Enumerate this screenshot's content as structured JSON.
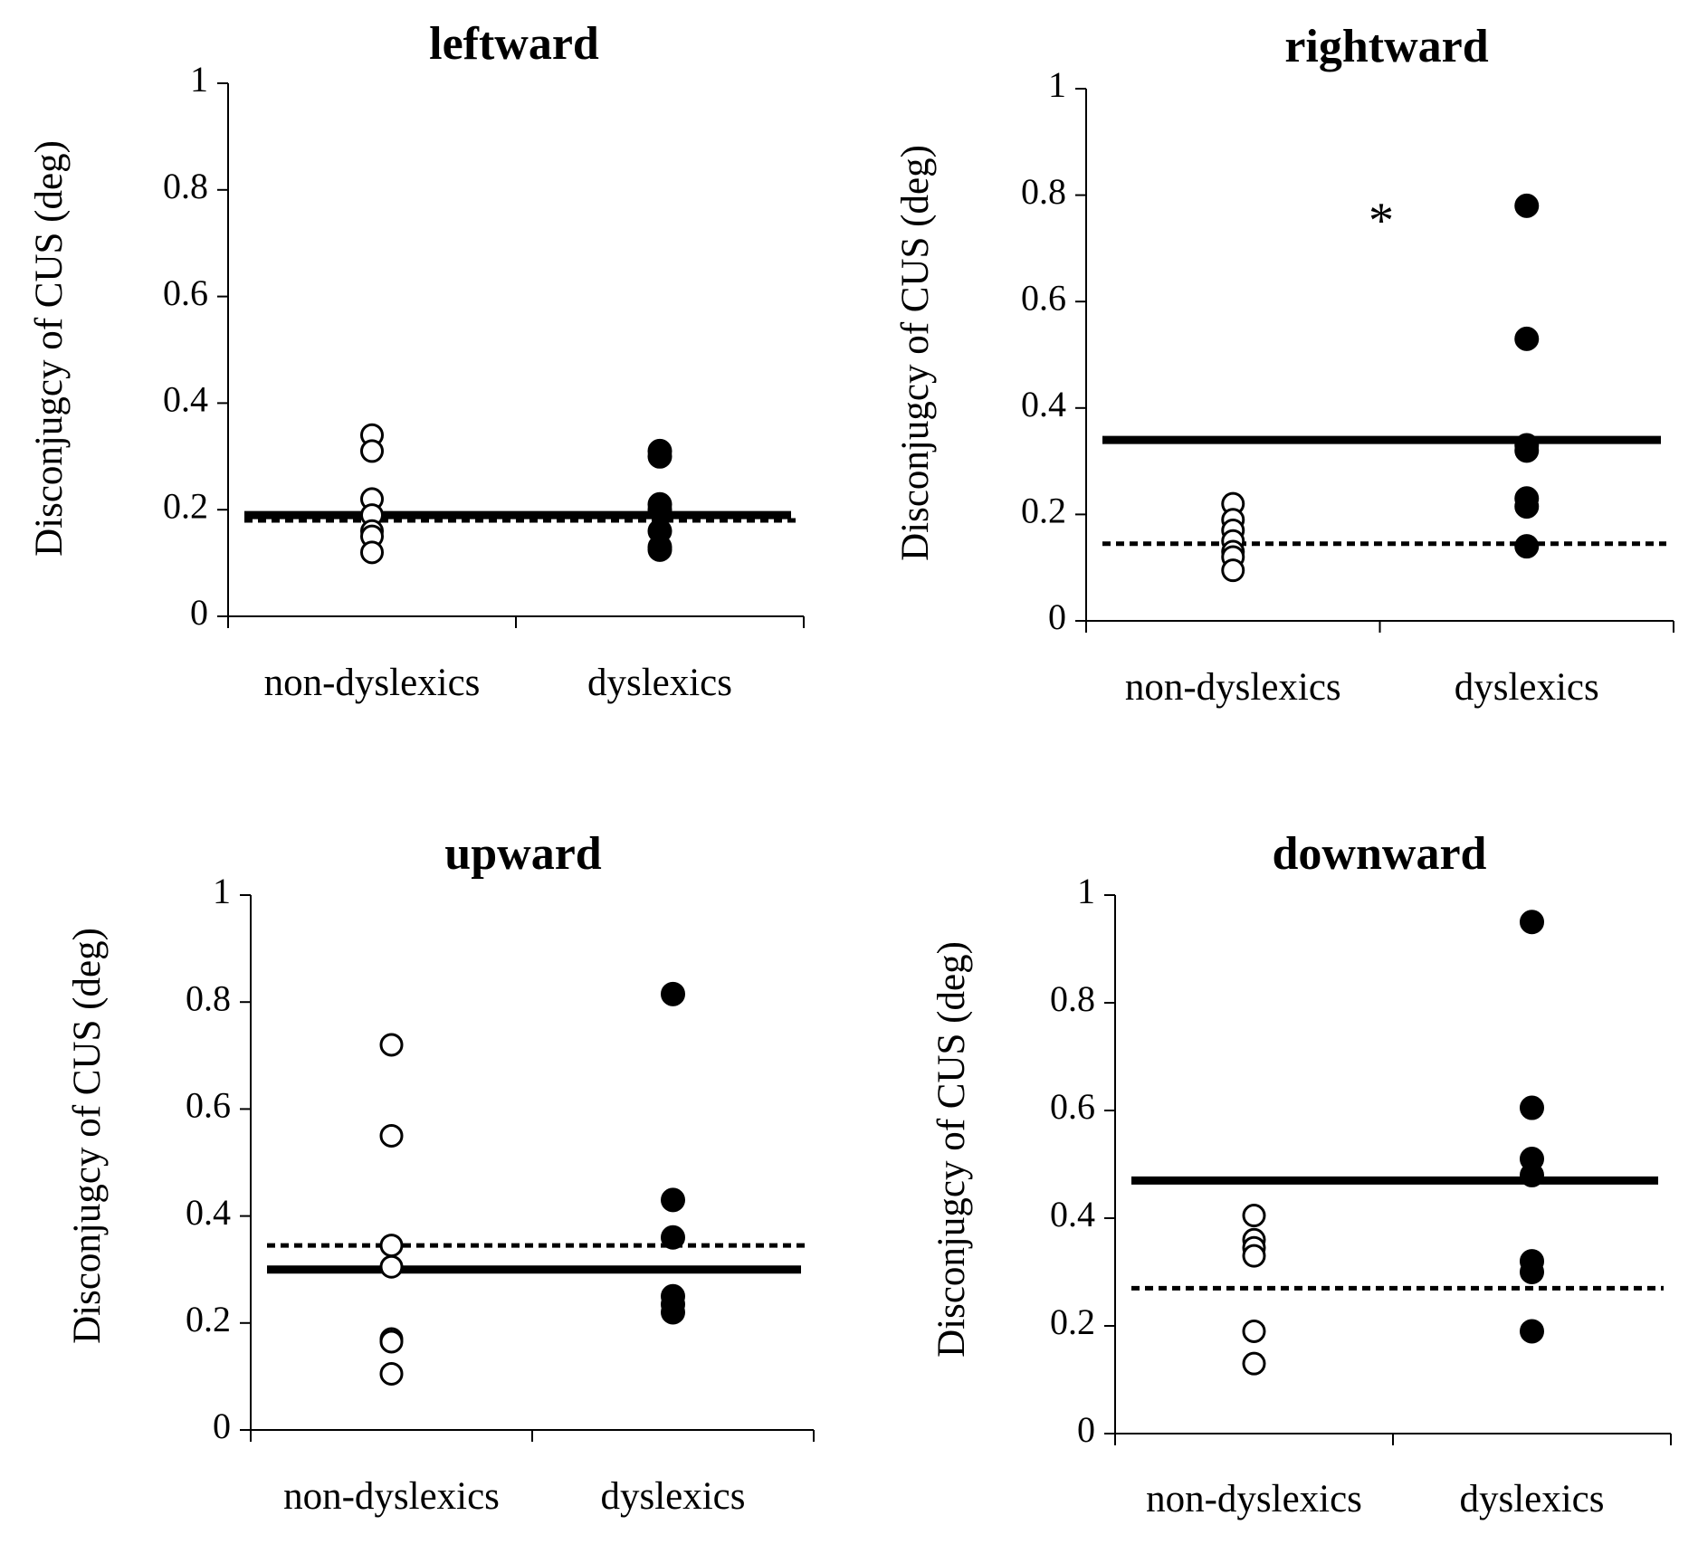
{
  "chart_data": [
    {
      "type": "scatter",
      "title": "leftward",
      "ylabel": "Disconjugcy of  CUS (deg)",
      "xlabel": "",
      "categories": [
        "non-dyslexics",
        "dyslexics"
      ],
      "ylim": [
        0,
        1
      ],
      "yticks": [
        "0",
        "0.2",
        "0.4",
        "0.6",
        "0.8",
        "1"
      ],
      "series": [
        {
          "name": "non-dyslexics",
          "marker": "open-circle",
          "values": [
            0.34,
            0.31,
            0.22,
            0.19,
            0.16,
            0.15,
            0.12
          ]
        },
        {
          "name": "dyslexics",
          "marker": "filled-circle",
          "values": [
            0.31,
            0.3,
            0.21,
            0.2,
            0.16,
            0.13,
            0.125
          ]
        }
      ],
      "solid_line": 0.19,
      "dashed_line": 0.18,
      "annotation": ""
    },
    {
      "type": "scatter",
      "title": "rightward",
      "ylabel": "Disconjugcy of  CUS (deg)",
      "xlabel": "",
      "categories": [
        "non-dyslexics",
        "dyslexics"
      ],
      "ylim": [
        0,
        1
      ],
      "yticks": [
        "0",
        "0.2",
        "0.4",
        "0.6",
        "0.8",
        "1"
      ],
      "series": [
        {
          "name": "non-dyslexics",
          "marker": "open-circle",
          "values": [
            0.22,
            0.19,
            0.17,
            0.15,
            0.13,
            0.12,
            0.095
          ]
        },
        {
          "name": "dyslexics",
          "marker": "filled-circle",
          "values": [
            0.78,
            0.53,
            0.33,
            0.32,
            0.23,
            0.215,
            0.14
          ]
        }
      ],
      "solid_line": 0.34,
      "dashed_line": 0.145,
      "annotation": "*"
    },
    {
      "type": "scatter",
      "title": "upward",
      "ylabel": "Disconjugcy of  CUS (deg)",
      "xlabel": "",
      "categories": [
        "non-dyslexics",
        "dyslexics"
      ],
      "ylim": [
        0,
        1
      ],
      "yticks": [
        "0",
        "0.2",
        "0.4",
        "0.6",
        "0.8",
        "1"
      ],
      "series": [
        {
          "name": "non-dyslexics",
          "marker": "open-circle",
          "values": [
            0.72,
            0.55,
            0.345,
            0.305,
            0.17,
            0.165,
            0.105
          ]
        },
        {
          "name": "dyslexics",
          "marker": "filled-circle",
          "values": [
            0.815,
            0.43,
            0.36,
            0.25,
            0.235,
            0.22
          ]
        }
      ],
      "solid_line": 0.3,
      "dashed_line": 0.345,
      "annotation": ""
    },
    {
      "type": "scatter",
      "title": "downward",
      "ylabel": "Disconjugcy of  CUS (deg)",
      "xlabel": "",
      "categories": [
        "non-dyslexics",
        "dyslexics"
      ],
      "ylim": [
        0,
        1
      ],
      "yticks": [
        "0",
        "0.2",
        "0.4",
        "0.6",
        "0.8",
        "1"
      ],
      "series": [
        {
          "name": "non-dyslexics",
          "marker": "open-circle",
          "values": [
            0.405,
            0.36,
            0.345,
            0.33,
            0.19,
            0.13
          ]
        },
        {
          "name": "dyslexics",
          "marker": "filled-circle",
          "values": [
            0.95,
            0.605,
            0.51,
            0.48,
            0.32,
            0.3,
            0.19
          ]
        }
      ],
      "solid_line": 0.47,
      "dashed_line": 0.27,
      "annotation": ""
    }
  ]
}
